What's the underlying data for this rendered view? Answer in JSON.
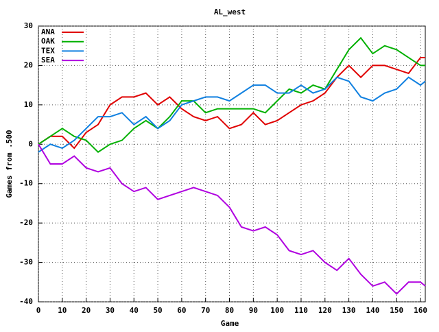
{
  "chart_data": {
    "type": "line",
    "title": "AL_west",
    "xlabel": "Game",
    "ylabel": "Games from .500",
    "x": [
      0,
      5,
      10,
      15,
      20,
      25,
      30,
      35,
      40,
      45,
      50,
      55,
      60,
      65,
      70,
      75,
      80,
      85,
      90,
      95,
      100,
      105,
      110,
      115,
      120,
      125,
      130,
      135,
      140,
      145,
      150,
      155,
      160,
      162
    ],
    "series": [
      {
        "name": "ANA",
        "color": "#e00000",
        "values": [
          0,
          2,
          2,
          -1,
          3,
          5,
          10,
          12,
          12,
          13,
          10,
          12,
          9,
          7,
          6,
          7,
          4,
          5,
          8,
          5,
          6,
          8,
          10,
          11,
          13,
          17,
          20,
          17,
          20,
          20,
          19,
          18,
          22,
          22
        ]
      },
      {
        "name": "OAK",
        "color": "#00b000",
        "values": [
          0,
          2,
          4,
          2,
          1,
          -2,
          0,
          1,
          4,
          6,
          4,
          7,
          11,
          11,
          8,
          9,
          9,
          9,
          9,
          8,
          11,
          14,
          13,
          15,
          14,
          19,
          24,
          27,
          23,
          25,
          24,
          22,
          20,
          20
        ]
      },
      {
        "name": "TEX",
        "color": "#1080e0",
        "values": [
          -2,
          0,
          -1,
          1,
          4,
          7,
          7,
          8,
          5,
          7,
          4,
          6,
          10,
          11,
          12,
          12,
          11,
          13,
          15,
          15,
          13,
          13,
          15,
          13,
          14,
          17,
          16,
          12,
          11,
          13,
          14,
          17,
          15,
          16
        ]
      },
      {
        "name": "SEA",
        "color": "#b000e0",
        "values": [
          0,
          -5,
          -5,
          -3,
          -6,
          -7,
          -6,
          -10,
          -12,
          -11,
          -14,
          -13,
          -12,
          -11,
          -12,
          -13,
          -16,
          -21,
          -22,
          -21,
          -23,
          -27,
          -28,
          -27,
          -30,
          -32,
          -29,
          -33,
          -36,
          -35,
          -38,
          -35,
          -35,
          -36
        ]
      }
    ],
    "xlim": [
      0,
      162
    ],
    "xticks": [
      0,
      10,
      20,
      30,
      40,
      50,
      60,
      70,
      80,
      90,
      100,
      110,
      120,
      130,
      140,
      150,
      160
    ],
    "ylim": [
      -40,
      30
    ],
    "yticks": [
      -40,
      -30,
      -20,
      -10,
      0,
      10,
      20,
      30
    ],
    "grid": true,
    "legend": "top-left"
  }
}
